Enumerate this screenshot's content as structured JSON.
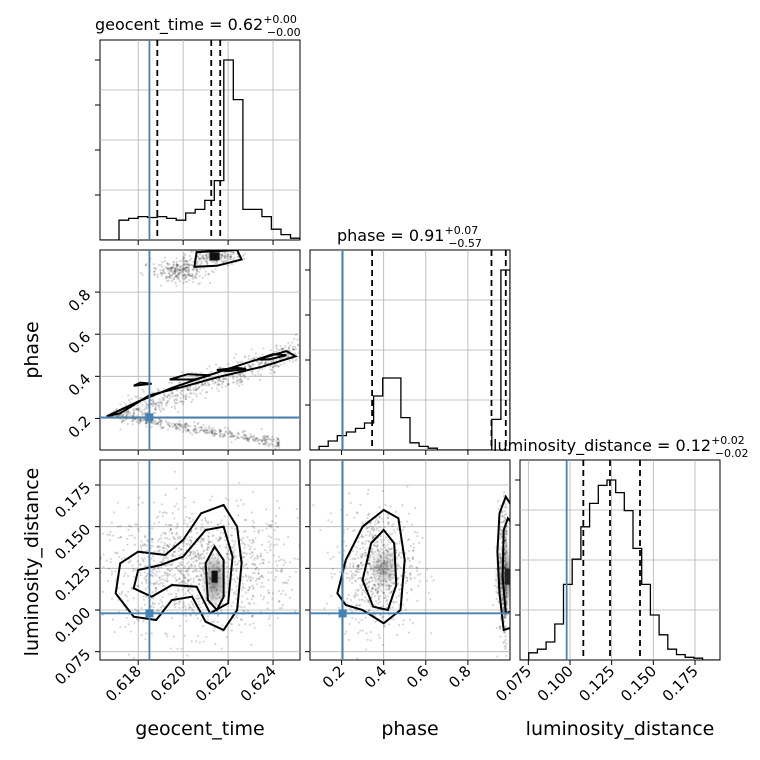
{
  "chart_data": {
    "type": "corner",
    "parameters": [
      "geocent_time",
      "phase",
      "luminosity_distance"
    ],
    "axis_labels": {
      "geocent_time": "geocent_time",
      "phase": "phase",
      "luminosity_distance": "luminosity_distance"
    },
    "ranges": {
      "geocent_time": [
        0.6163,
        0.6252
      ],
      "phase": [
        0.05,
        1.0
      ],
      "luminosity_distance": [
        0.07,
        0.19
      ]
    },
    "ticks": {
      "geocent_time": {
        "values": [
          0.618,
          0.62,
          0.622,
          0.624
        ],
        "labels": [
          "0.618",
          "0.620",
          "0.622",
          "0.624"
        ]
      },
      "phase": {
        "values": [
          0.2,
          0.4,
          0.6,
          0.8
        ],
        "labels": [
          "0.2",
          "0.4",
          "0.6",
          "0.8"
        ]
      },
      "luminosity_distance": {
        "values": [
          0.075,
          0.1,
          0.125,
          0.15,
          0.175
        ],
        "labels": [
          "0.075",
          "0.100",
          "0.125",
          "0.150",
          "0.175"
        ]
      }
    },
    "truths": {
      "geocent_time": 0.6185,
      "phase": 0.205,
      "luminosity_distance": 0.098
    },
    "titles": [
      {
        "param": "geocent_time",
        "text": "geocent_time = 0.62",
        "plus": "+0.00",
        "minus": "−0.00"
      },
      {
        "param": "phase",
        "text": "phase = 0.91",
        "plus": "+0.07",
        "minus": "−0.57"
      },
      {
        "param": "luminosity_distance",
        "text": "luminosity_distance = 0.12",
        "plus": "+0.02",
        "minus": "−0.02"
      }
    ],
    "quantiles": {
      "geocent_time": [
        0.61885,
        0.62125,
        0.62165
      ],
      "phase": [
        0.345,
        0.912,
        0.98
      ],
      "luminosity_distance": [
        0.108,
        0.124,
        0.142
      ]
    },
    "histograms": {
      "geocent_time": [
        0,
        0,
        0.11,
        0.12,
        0.13,
        0.125,
        0.13,
        0.12,
        0.11,
        0.15,
        0.17,
        0.22,
        0.33,
        1.0,
        0.78,
        0.17,
        0.17,
        0.13,
        0.06,
        0.03,
        0.01
      ],
      "phase": [
        0,
        0.02,
        0.05,
        0.08,
        0.1,
        0.12,
        0.15,
        0.3,
        0.4,
        0.4,
        0.18,
        0.04,
        0.02,
        0.01,
        0,
        0,
        0,
        0,
        0,
        0,
        0.17,
        1.0
      ],
      "luminosity_distance": [
        0,
        0.04,
        0.06,
        0.1,
        0.2,
        0.42,
        0.56,
        0.74,
        0.87,
        0.97,
        1.0,
        0.93,
        0.83,
        0.62,
        0.42,
        0.25,
        0.14,
        0.06,
        0.03,
        0.015,
        0.01,
        0,
        0
      ]
    },
    "grid": true
  }
}
